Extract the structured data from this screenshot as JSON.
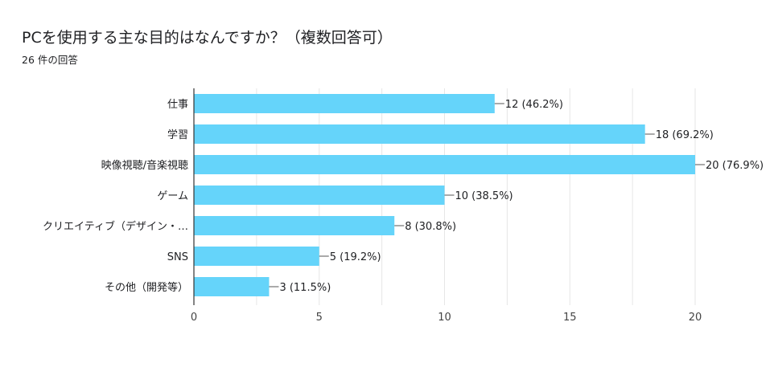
{
  "title": "PCを使用する主な目的はなんですか？（複数回答可）",
  "subtitle": "26 件の回答",
  "colors": {
    "bar": "#65d4fa",
    "grid": "#e6e6e6",
    "axis": "#333333",
    "leader": "#555555"
  },
  "chart_data": {
    "type": "bar",
    "orientation": "horizontal",
    "categories": [
      "仕事",
      "学習",
      "映像視聴/音楽視聴",
      "ゲーム",
      "クリエイティブ（デザイン・…",
      "SNS",
      "その他（開発等）"
    ],
    "values": [
      12,
      18,
      20,
      10,
      8,
      5,
      3
    ],
    "value_labels": [
      "12 (46.2%)",
      "18 (69.2%)",
      "20 (76.9%)",
      "10 (38.5%)",
      "8 (30.8%)",
      "5 (19.2%)",
      "3 (11.5%)"
    ],
    "xlim": [
      0,
      20
    ],
    "xticks": [
      0,
      5,
      10,
      15,
      20
    ],
    "grid": true,
    "legend": "none"
  }
}
